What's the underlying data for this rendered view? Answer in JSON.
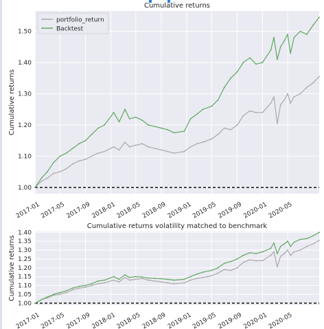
{
  "chart_data": [
    {
      "type": "line",
      "title": "Cumulative returns",
      "ylabel": "Cumulative returns",
      "xlabel": "",
      "ylim": [
        0.98,
        1.565
      ],
      "yticks": [
        1.0,
        1.1,
        1.2,
        1.3,
        1.4,
        1.5
      ],
      "ytick_labels": [
        "1.00",
        "1.10",
        "1.20",
        "1.30",
        "1.40",
        "1.50"
      ],
      "xlim": [
        "2017-01-01",
        "2020-09-30"
      ],
      "xtick_labels": [
        "2017-01",
        "2017-05",
        "2017-09",
        "2018-01",
        "2018-05",
        "2018-09",
        "2019-01",
        "2019-05",
        "2019-09",
        "2020-01",
        "2020-05"
      ],
      "grid": true,
      "legend": "top-left",
      "baseline": 1.0,
      "series": [
        {
          "name": "portfolio_return",
          "color": "#a9a9a9",
          "points": [
            [
              "2017-01-01",
              1.0
            ],
            [
              "2017-02-01",
              1.02
            ],
            [
              "2017-03-01",
              1.03
            ],
            [
              "2017-04-01",
              1.045
            ],
            [
              "2017-05-01",
              1.05
            ],
            [
              "2017-06-01",
              1.06
            ],
            [
              "2017-07-01",
              1.075
            ],
            [
              "2017-08-01",
              1.085
            ],
            [
              "2017-09-01",
              1.09
            ],
            [
              "2017-10-01",
              1.1
            ],
            [
              "2017-11-01",
              1.11
            ],
            [
              "2017-12-01",
              1.115
            ],
            [
              "2018-01-15",
              1.13
            ],
            [
              "2018-02-10",
              1.12
            ],
            [
              "2018-03-10",
              1.145
            ],
            [
              "2018-04-01",
              1.13
            ],
            [
              "2018-05-01",
              1.135
            ],
            [
              "2018-06-01",
              1.14
            ],
            [
              "2018-07-01",
              1.13
            ],
            [
              "2018-08-01",
              1.125
            ],
            [
              "2018-09-01",
              1.12
            ],
            [
              "2018-10-01",
              1.115
            ],
            [
              "2018-11-01",
              1.11
            ],
            [
              "2018-12-20",
              1.115
            ],
            [
              "2019-01-20",
              1.13
            ],
            [
              "2019-02-20",
              1.14
            ],
            [
              "2019-03-20",
              1.145
            ],
            [
              "2019-05-01",
              1.155
            ],
            [
              "2019-06-01",
              1.17
            ],
            [
              "2019-07-01",
              1.19
            ],
            [
              "2019-08-01",
              1.185
            ],
            [
              "2019-09-01",
              1.2
            ],
            [
              "2019-10-01",
              1.23
            ],
            [
              "2019-11-01",
              1.245
            ],
            [
              "2019-12-01",
              1.24
            ],
            [
              "2020-01-01",
              1.24
            ],
            [
              "2020-02-10",
              1.27
            ],
            [
              "2020-02-25",
              1.29
            ],
            [
              "2020-03-12",
              1.205
            ],
            [
              "2020-03-28",
              1.265
            ],
            [
              "2020-04-15",
              1.28
            ],
            [
              "2020-05-01",
              1.3
            ],
            [
              "2020-05-15",
              1.27
            ],
            [
              "2020-06-01",
              1.29
            ],
            [
              "2020-07-01",
              1.3
            ],
            [
              "2020-08-01",
              1.32
            ],
            [
              "2020-09-01",
              1.335
            ],
            [
              "2020-09-30",
              1.355
            ]
          ]
        },
        {
          "name": "Backtest",
          "color": "#5fa85f",
          "points": [
            [
              "2017-01-01",
              1.0
            ],
            [
              "2017-02-01",
              1.03
            ],
            [
              "2017-03-01",
              1.05
            ],
            [
              "2017-04-01",
              1.08
            ],
            [
              "2017-05-01",
              1.1
            ],
            [
              "2017-06-01",
              1.11
            ],
            [
              "2017-07-01",
              1.125
            ],
            [
              "2017-08-01",
              1.14
            ],
            [
              "2017-09-01",
              1.15
            ],
            [
              "2017-10-01",
              1.17
            ],
            [
              "2017-11-01",
              1.19
            ],
            [
              "2017-12-01",
              1.2
            ],
            [
              "2018-01-15",
              1.24
            ],
            [
              "2018-02-10",
              1.21
            ],
            [
              "2018-03-10",
              1.25
            ],
            [
              "2018-04-01",
              1.22
            ],
            [
              "2018-05-01",
              1.225
            ],
            [
              "2018-06-01",
              1.215
            ],
            [
              "2018-07-01",
              1.2
            ],
            [
              "2018-08-01",
              1.195
            ],
            [
              "2018-09-01",
              1.19
            ],
            [
              "2018-10-01",
              1.185
            ],
            [
              "2018-11-01",
              1.175
            ],
            [
              "2018-12-20",
              1.18
            ],
            [
              "2019-01-20",
              1.22
            ],
            [
              "2019-02-20",
              1.235
            ],
            [
              "2019-03-20",
              1.25
            ],
            [
              "2019-05-01",
              1.26
            ],
            [
              "2019-06-01",
              1.28
            ],
            [
              "2019-07-01",
              1.32
            ],
            [
              "2019-08-01",
              1.35
            ],
            [
              "2019-09-01",
              1.37
            ],
            [
              "2019-10-01",
              1.4
            ],
            [
              "2019-11-01",
              1.415
            ],
            [
              "2019-12-01",
              1.395
            ],
            [
              "2020-01-01",
              1.4
            ],
            [
              "2020-02-10",
              1.44
            ],
            [
              "2020-02-25",
              1.48
            ],
            [
              "2020-03-12",
              1.41
            ],
            [
              "2020-03-28",
              1.45
            ],
            [
              "2020-04-15",
              1.47
            ],
            [
              "2020-05-01",
              1.49
            ],
            [
              "2020-05-15",
              1.43
            ],
            [
              "2020-06-01",
              1.48
            ],
            [
              "2020-07-01",
              1.5
            ],
            [
              "2020-08-01",
              1.49
            ],
            [
              "2020-09-01",
              1.52
            ],
            [
              "2020-09-30",
              1.545
            ]
          ]
        }
      ]
    },
    {
      "type": "line",
      "title": "Cumulative returns volatility matched to benchmark",
      "ylabel": "Cumulative returns",
      "xlabel": "",
      "ylim": [
        0.99,
        1.405
      ],
      "yticks": [
        1.0,
        1.05,
        1.1,
        1.15,
        1.2,
        1.25,
        1.3,
        1.35,
        1.4
      ],
      "ytick_labels": [
        "1.00",
        "1.05",
        "1.10",
        "1.15",
        "1.20",
        "1.25",
        "1.30",
        "1.35",
        "1.40"
      ],
      "xlim": [
        "2017-01-01",
        "2020-09-30"
      ],
      "xtick_labels": [
        "2017-01",
        "2017-05",
        "2017-09",
        "2018-01",
        "2018-05",
        "2018-09",
        "2019-01",
        "2019-05",
        "2019-09",
        "2020-01",
        "2020-05"
      ],
      "grid": true,
      "legend": "none",
      "baseline": 1.0,
      "series": [
        {
          "name": "portfolio_return",
          "color": "#a9a9a9",
          "points": [
            [
              "2017-01-01",
              1.0
            ],
            [
              "2017-02-01",
              1.02
            ],
            [
              "2017-03-01",
              1.03
            ],
            [
              "2017-04-01",
              1.045
            ],
            [
              "2017-05-01",
              1.05
            ],
            [
              "2017-06-01",
              1.06
            ],
            [
              "2017-07-01",
              1.075
            ],
            [
              "2017-08-01",
              1.085
            ],
            [
              "2017-09-01",
              1.09
            ],
            [
              "2017-10-01",
              1.1
            ],
            [
              "2017-11-01",
              1.11
            ],
            [
              "2017-12-01",
              1.115
            ],
            [
              "2018-01-15",
              1.13
            ],
            [
              "2018-02-10",
              1.12
            ],
            [
              "2018-03-10",
              1.145
            ],
            [
              "2018-04-01",
              1.13
            ],
            [
              "2018-05-01",
              1.135
            ],
            [
              "2018-06-01",
              1.14
            ],
            [
              "2018-07-01",
              1.13
            ],
            [
              "2018-08-01",
              1.125
            ],
            [
              "2018-09-01",
              1.12
            ],
            [
              "2018-10-01",
              1.115
            ],
            [
              "2018-11-01",
              1.11
            ],
            [
              "2018-12-20",
              1.115
            ],
            [
              "2019-01-20",
              1.13
            ],
            [
              "2019-02-20",
              1.14
            ],
            [
              "2019-03-20",
              1.145
            ],
            [
              "2019-05-01",
              1.155
            ],
            [
              "2019-06-01",
              1.17
            ],
            [
              "2019-07-01",
              1.19
            ],
            [
              "2019-08-01",
              1.185
            ],
            [
              "2019-09-01",
              1.2
            ],
            [
              "2019-10-01",
              1.23
            ],
            [
              "2019-11-01",
              1.245
            ],
            [
              "2019-12-01",
              1.24
            ],
            [
              "2020-01-01",
              1.24
            ],
            [
              "2020-02-10",
              1.27
            ],
            [
              "2020-02-25",
              1.29
            ],
            [
              "2020-03-12",
              1.205
            ],
            [
              "2020-03-28",
              1.265
            ],
            [
              "2020-04-15",
              1.28
            ],
            [
              "2020-05-01",
              1.3
            ],
            [
              "2020-05-15",
              1.27
            ],
            [
              "2020-06-01",
              1.29
            ],
            [
              "2020-07-01",
              1.3
            ],
            [
              "2020-08-01",
              1.32
            ],
            [
              "2020-09-01",
              1.335
            ],
            [
              "2020-09-30",
              1.355
            ]
          ]
        },
        {
          "name": "Backtest",
          "color": "#5fa85f",
          "points": [
            [
              "2017-01-01",
              1.0
            ],
            [
              "2017-02-01",
              1.02
            ],
            [
              "2017-03-01",
              1.035
            ],
            [
              "2017-04-01",
              1.05
            ],
            [
              "2017-05-01",
              1.06
            ],
            [
              "2017-06-01",
              1.07
            ],
            [
              "2017-07-01",
              1.085
            ],
            [
              "2017-08-01",
              1.095
            ],
            [
              "2017-09-01",
              1.1
            ],
            [
              "2017-10-01",
              1.11
            ],
            [
              "2017-11-01",
              1.125
            ],
            [
              "2017-12-01",
              1.13
            ],
            [
              "2018-01-15",
              1.15
            ],
            [
              "2018-02-10",
              1.135
            ],
            [
              "2018-03-10",
              1.16
            ],
            [
              "2018-04-01",
              1.145
            ],
            [
              "2018-05-01",
              1.15
            ],
            [
              "2018-06-01",
              1.148
            ],
            [
              "2018-07-01",
              1.142
            ],
            [
              "2018-08-01",
              1.14
            ],
            [
              "2018-09-01",
              1.138
            ],
            [
              "2018-10-01",
              1.135
            ],
            [
              "2018-11-01",
              1.13
            ],
            [
              "2018-12-20",
              1.135
            ],
            [
              "2019-01-20",
              1.15
            ],
            [
              "2019-02-20",
              1.165
            ],
            [
              "2019-03-20",
              1.175
            ],
            [
              "2019-05-01",
              1.185
            ],
            [
              "2019-06-01",
              1.2
            ],
            [
              "2019-07-01",
              1.225
            ],
            [
              "2019-08-01",
              1.235
            ],
            [
              "2019-09-01",
              1.25
            ],
            [
              "2019-10-01",
              1.27
            ],
            [
              "2019-11-01",
              1.285
            ],
            [
              "2019-12-01",
              1.28
            ],
            [
              "2020-01-01",
              1.29
            ],
            [
              "2020-02-10",
              1.31
            ],
            [
              "2020-02-25",
              1.34
            ],
            [
              "2020-03-12",
              1.28
            ],
            [
              "2020-03-28",
              1.32
            ],
            [
              "2020-04-15",
              1.335
            ],
            [
              "2020-05-01",
              1.35
            ],
            [
              "2020-05-15",
              1.32
            ],
            [
              "2020-06-01",
              1.345
            ],
            [
              "2020-07-01",
              1.36
            ],
            [
              "2020-08-01",
              1.365
            ],
            [
              "2020-09-01",
              1.38
            ],
            [
              "2020-09-30",
              1.4
            ]
          ]
        }
      ]
    }
  ]
}
